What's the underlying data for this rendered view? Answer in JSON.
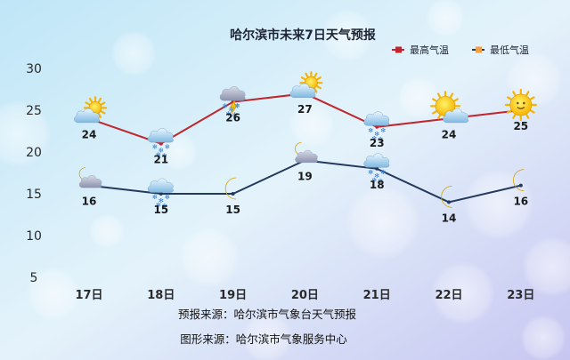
{
  "chart_data": {
    "type": "line",
    "title": "哈尔滨市未来7日天气预报",
    "categories": [
      "17日",
      "18日",
      "19日",
      "20日",
      "21日",
      "22日",
      "23日"
    ],
    "yticks": [
      5,
      10,
      15,
      20,
      25,
      30
    ],
    "ylim": [
      5,
      30
    ],
    "series": [
      {
        "name": "最高气温",
        "color": "#c0262d",
        "values": [
          24,
          21,
          26,
          27,
          23,
          24,
          25
        ],
        "icons": [
          "partly-cloudy-icon",
          "snow-cloud-icon",
          "thunder-snow-icon",
          "partly-cloudy-icon",
          "snow-cloud-icon",
          "sun-cloud-icon",
          "sun-icon"
        ]
      },
      {
        "name": "最低气温",
        "color": "#233a5e",
        "values": [
          16,
          15,
          15,
          19,
          18,
          14,
          16
        ],
        "icons": [
          "moon-cloud-icon",
          "snow-cloud-icon",
          "moon-icon",
          "moon-cloud-icon",
          "snow-cloud-icon",
          "moon-icon",
          "moon-icon"
        ]
      }
    ],
    "legend_position": "top-right",
    "grid": false
  },
  "sources": {
    "forecast": "预报来源：哈尔滨市气象台天气预报",
    "graphic": "图形来源：哈尔滨市气象服务中心"
  }
}
